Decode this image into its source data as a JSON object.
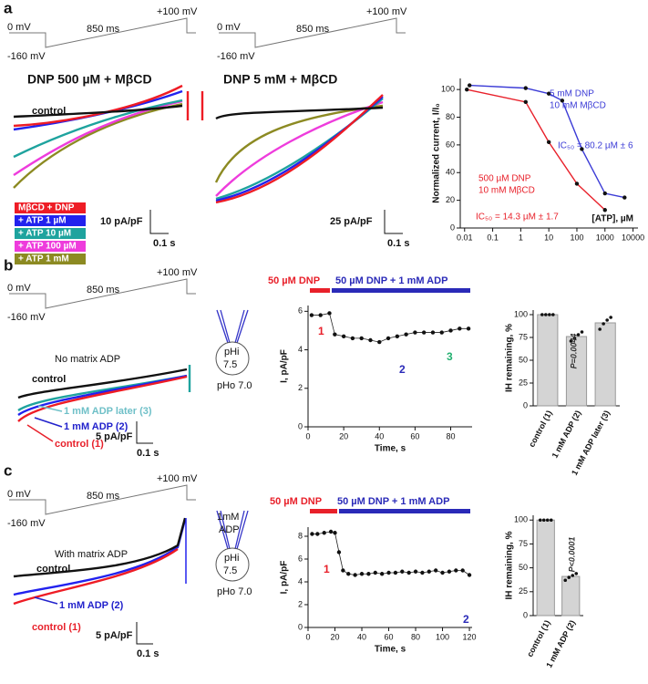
{
  "figure": {
    "a": {
      "letter": "a",
      "protocol1": {
        "start": "0 mV",
        "duration": "850 ms",
        "end": "+100 mV",
        "hold": "-160 mV"
      },
      "protocol2": {
        "start": "0 mV",
        "duration": "850 ms",
        "end": "+100 mV",
        "hold": "-160 mV"
      },
      "title1": "DNP 500 µM + MβCD",
      "title2": "DNP 5 mM + MβCD",
      "control": "control",
      "legend": [
        {
          "name": "MβCD + DNP",
          "color": "#ee1c25"
        },
        {
          "name": "+ ATP 1 µM",
          "color": "#2222ee"
        },
        {
          "name": "+ ATP 10 µM",
          "color": "#1ea39e"
        },
        {
          "name": "+ ATP 100 µM",
          "color": "#ee3cdc"
        },
        {
          "name": "+ ATP 1 mM",
          "color": "#8c8a22"
        }
      ],
      "scale1": {
        "y": "10 pA/pF",
        "x": "0.1 s"
      },
      "scale2": {
        "y": "25 pA/pF",
        "x": "0.1 s"
      }
    },
    "b": {
      "letter": "b",
      "protocol": {
        "start": "0 mV",
        "duration": "850 ms",
        "end": "+100 mV",
        "hold": "-160 mV"
      },
      "condition": "No matrix ADP",
      "control": "control",
      "later": "1 mM ADP later (3)",
      "adp": "1 mM ADP (2)",
      "control1": "control (1)",
      "scale": {
        "y": "5 pA/pF",
        "x": "0.1 s"
      },
      "inside": "pHi",
      "inside_value": "7.5",
      "outside": "pHo 7.0",
      "treatment1": "50 µM DNP",
      "treatment2": "50 µM DNP + 1 mM ADP"
    },
    "c": {
      "letter": "c",
      "protocol": {
        "start": "0 mV",
        "duration": "850 ms",
        "end": "+100 mV",
        "hold": "-160 mV"
      },
      "condition": "With matrix ADP",
      "control": "control",
      "adp": "1 mM ADP (2)",
      "control1": "control (1)",
      "scale": {
        "y": "5 pA/pF",
        "x": "0.1 s"
      },
      "matrix1": "1mM",
      "matrix2": "ADP",
      "inside": "pHi",
      "inside_value": "7.5",
      "outside": "pHo 7.0",
      "treatment1": "50 µM DNP",
      "treatment2": "50 µM DNP + 1 mM ADP"
    }
  },
  "chart_data": [
    {
      "type": "line",
      "xlog": true,
      "xlabel": "[ATP], µM",
      "ylabel": "Normalized current, I/I₀",
      "xlim": [
        0.007,
        15000
      ],
      "xticks": [
        0.01,
        0.1,
        1,
        10,
        100,
        1000,
        10000
      ],
      "ylim": [
        0,
        108
      ],
      "yticks": [
        0,
        20,
        40,
        60,
        80,
        100
      ],
      "series": [
        {
          "color": "#e8202a",
          "x": [
            0.012,
            1.5,
            10,
            100,
            1000
          ],
          "values": [
            100,
            91,
            62,
            32,
            13
          ]
        },
        {
          "color": "#3b3bd6",
          "x": [
            0.015,
            1.5,
            10,
            30,
            150,
            1000,
            5000
          ],
          "values": [
            103,
            101,
            97,
            92,
            57,
            25,
            22
          ]
        }
      ],
      "annotations": [
        {
          "text": "5 mM DNP",
          "color": "#3b3bd6"
        },
        {
          "text": "10 mM MβCD",
          "color": "#3b3bd6"
        },
        {
          "text": "IC₅₀ = 80.2 µM ± 6",
          "color": "#3b3bd6"
        },
        {
          "text": "500 µM DNP",
          "color": "#e8202a"
        },
        {
          "text": "10 mM MβCD",
          "color": "#e8202a"
        },
        {
          "text": "IC₅₀ = 14.3 µM ± 1.7",
          "color": "#e8202a"
        }
      ]
    },
    {
      "type": "line",
      "xlabel": "Time, s",
      "ylabel": "I, pA/pF",
      "color": "#222",
      "xlim": [
        0,
        92
      ],
      "xticks": [
        0,
        20,
        40,
        60,
        80
      ],
      "ylim": [
        0,
        6.3
      ],
      "yticks": [
        0,
        2,
        4,
        6
      ],
      "x": [
        2,
        7,
        12,
        15,
        20,
        25,
        30,
        35,
        40,
        45,
        50,
        55,
        60,
        65,
        70,
        75,
        80,
        85,
        90
      ],
      "values": [
        5.8,
        5.8,
        5.9,
        4.8,
        4.7,
        4.6,
        4.6,
        4.5,
        4.4,
        4.6,
        4.7,
        4.8,
        4.9,
        4.9,
        4.9,
        4.9,
        5.0,
        5.1,
        5.1
      ],
      "annotations": [
        {
          "text": "1",
          "color": "#e8202a"
        },
        {
          "text": "2",
          "color": "#2a2ab8"
        },
        {
          "text": "3",
          "color": "#22b070"
        }
      ]
    },
    {
      "type": "bar",
      "ylabel": "IH remaining, %",
      "color": "#d4d4d4",
      "categories": [
        "control (1)",
        "1 mM ADP (2)",
        "1 mM ADP later (3)"
      ],
      "values": [
        100,
        76,
        91
      ],
      "points": [
        [
          100,
          100,
          100,
          100
        ],
        [
          71,
          74,
          78,
          81
        ],
        [
          84,
          90,
          94,
          97
        ]
      ],
      "ylim": [
        0,
        105
      ],
      "yticks": [
        0,
        25,
        50,
        75,
        100
      ],
      "annotations": [
        {
          "text": "P=0.0044",
          "color": "#333"
        }
      ]
    },
    {
      "type": "line",
      "xlabel": "Time, s",
      "ylabel": "I, pA/pF",
      "color": "#222",
      "xlim": [
        0,
        122
      ],
      "xticks": [
        0,
        20,
        40,
        60,
        80,
        100,
        120
      ],
      "ylim": [
        0,
        8.8
      ],
      "yticks": [
        0,
        2,
        4,
        6,
        8
      ],
      "x": [
        3,
        7,
        12,
        17,
        20,
        23,
        26,
        30,
        35,
        40,
        45,
        50,
        55,
        60,
        65,
        70,
        75,
        80,
        85,
        90,
        95,
        100,
        105,
        110,
        115,
        120
      ],
      "values": [
        8.2,
        8.2,
        8.3,
        8.4,
        8.3,
        6.6,
        5.0,
        4.7,
        4.6,
        4.7,
        4.7,
        4.8,
        4.7,
        4.8,
        4.8,
        4.9,
        4.8,
        4.9,
        4.8,
        4.9,
        5.0,
        4.8,
        4.9,
        5.0,
        5.0,
        4.6
      ],
      "annotations": [
        {
          "text": "1",
          "color": "#e8202a"
        },
        {
          "text": "2",
          "color": "#2a2ab8"
        }
      ]
    },
    {
      "type": "bar",
      "ylabel": "IH remaining, %",
      "color": "#d4d4d4",
      "categories": [
        "control (1)",
        "1 mM ADP (2)"
      ],
      "values": [
        100,
        41
      ],
      "points": [
        [
          100,
          100,
          100,
          100
        ],
        [
          37,
          40,
          42,
          44
        ]
      ],
      "ylim": [
        0,
        105
      ],
      "yticks": [
        0,
        25,
        50,
        75,
        100
      ],
      "annotations": [
        {
          "text": "P<0.0001",
          "color": "#333"
        }
      ]
    }
  ]
}
